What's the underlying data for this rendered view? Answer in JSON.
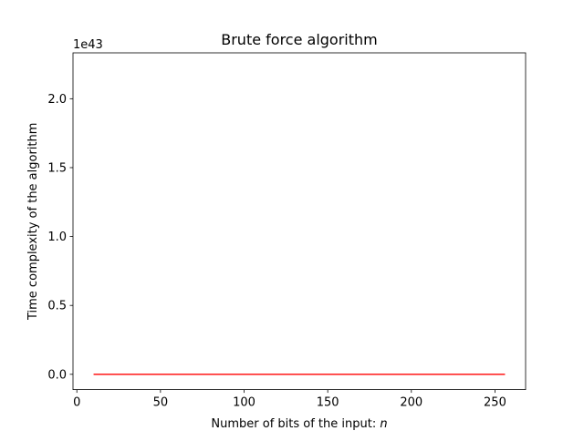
{
  "chart_data": {
    "type": "line",
    "title": "Brute force algorithm",
    "xlabel_text": "Number of bits of the input: ",
    "xlabel_var": "n",
    "ylabel": "Time complexity of the algorithm",
    "offset_text": "1e43",
    "y_scale_exponent": 43,
    "xlim": [
      -2.3,
      268.3
    ],
    "ylim": [
      -0.111,
      2.333
    ],
    "x_ticks": [
      0,
      50,
      100,
      150,
      200,
      250
    ],
    "x_tick_labels": [
      "0",
      "50",
      "100",
      "150",
      "200",
      "250"
    ],
    "y_ticks": [
      0.0,
      0.5,
      1.0,
      1.5,
      2.0
    ],
    "y_tick_labels": [
      "0.0",
      "0.5",
      "1.0",
      "1.5",
      "2.0"
    ],
    "grid": false,
    "series": [
      {
        "function": "2^(n/2)",
        "x_start": 10,
        "x_end": 256,
        "color": "#ff0000"
      }
    ]
  }
}
